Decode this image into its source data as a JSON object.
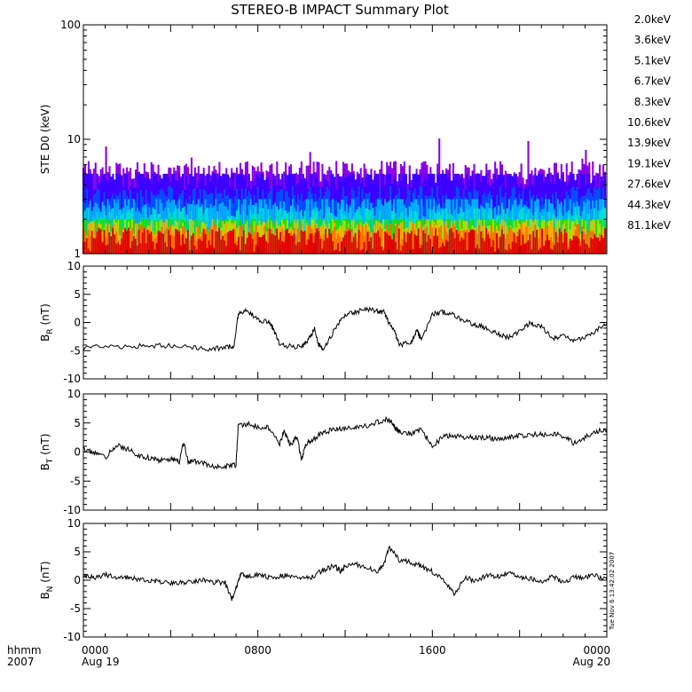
{
  "title": "STEREO-B IMPACT Summary Plot",
  "timestamp": "Tue Nov  6 13:42:02 2007",
  "x_axis": {
    "ticks": [
      {
        "t": 0,
        "top": "0000",
        "bottom": "Aug 19"
      },
      {
        "t": 8,
        "top": "0800",
        "bottom": ""
      },
      {
        "t": 16,
        "top": "1600",
        "bottom": ""
      },
      {
        "t": 24,
        "top": "0000",
        "bottom": "Aug 20"
      }
    ],
    "corner_top": "hhmm",
    "corner_bottom": "2007",
    "range_hours": [
      0,
      24
    ]
  },
  "colors": {
    "2.0keV": "#8a00e6",
    "3.6keV": "#3a00ff",
    "5.1keV": "#0050ff",
    "6.7keV": "#00b4ff",
    "8.3keV": "#00e0d0",
    "10.6keV": "#00e070",
    "13.9keV": "#20e000",
    "19.1keV": "#b0e000",
    "27.6keV": "#ffb000",
    "44.3keV": "#ff7000",
    "81.1keV": "#e00000"
  },
  "chart_data": [
    {
      "type": "bar",
      "name": "STE D0 spectrogram",
      "ylabel": "STE D0 (keV)",
      "yscale": "log",
      "ylim": [
        1,
        100
      ],
      "yticks": [
        "1",
        "10",
        "100"
      ],
      "legend": [
        "2.0keV",
        "3.6keV",
        "5.1keV",
        "6.7keV",
        "8.3keV",
        "10.6keV",
        "13.9keV",
        "19.1keV",
        "27.6keV",
        "44.3keV",
        "81.1keV"
      ],
      "legend_placement": "right",
      "series": [
        {
          "name": "2.0keV",
          "typical": 5,
          "max": 11
        },
        {
          "name": "3.6keV",
          "typical": 4.5,
          "max": 5
        },
        {
          "name": "5.1keV",
          "typical": 3,
          "max": 4
        },
        {
          "name": "6.7keV",
          "typical": 2.5,
          "max": 3
        },
        {
          "name": "8.3keV",
          "typical": 2,
          "max": 3
        },
        {
          "name": "10.6keV",
          "typical": 1.8,
          "max": 2
        },
        {
          "name": "13.9keV",
          "typical": 1.8,
          "max": 2
        },
        {
          "name": "19.1keV",
          "typical": 1.6,
          "max": 2
        },
        {
          "name": "27.6keV",
          "typical": 1.5,
          "max": 2
        },
        {
          "name": "44.3keV",
          "typical": 1.4,
          "max": 2
        },
        {
          "name": "81.1keV",
          "typical": 1.3,
          "max": 2
        }
      ]
    },
    {
      "type": "line",
      "ylabel_main": "B",
      "ylabel_sub": "R",
      "ylabel_unit": "(nT)",
      "ylim": [
        -10,
        10
      ],
      "yticks": [
        "10",
        "5",
        "0",
        "-5",
        "-10"
      ],
      "x": [
        0,
        1,
        2,
        3,
        4,
        5,
        5.8,
        6.5,
        6.9,
        7.1,
        7.5,
        8,
        8.5,
        8.7,
        9,
        9.5,
        10,
        10.3,
        10.6,
        10.8,
        11,
        11.5,
        12,
        12.5,
        13,
        13.5,
        13.8,
        14,
        14.3,
        14.5,
        15,
        15.3,
        15.5,
        16,
        16.5,
        17,
        17.5,
        18,
        18.5,
        19,
        19.5,
        20,
        20.5,
        21,
        21.5,
        22,
        22.5,
        23,
        23.5,
        24
      ],
      "y": [
        -4.5,
        -4.3,
        -4.3,
        -4.1,
        -4.2,
        -4.4,
        -4.8,
        -4.4,
        -4.2,
        1.5,
        2.3,
        0.5,
        0,
        -1,
        -4,
        -4.2,
        -4.4,
        -3.2,
        -1.2,
        -4,
        -4.7,
        -1.4,
        1.5,
        1.9,
        2.3,
        2,
        1.8,
        0,
        -2,
        -4,
        -3.5,
        -1.5,
        -3,
        1.5,
        1.8,
        1.4,
        0.2,
        -0.4,
        -1,
        -2,
        -2.7,
        -1.5,
        -0.1,
        -0.7,
        -2.8,
        -2.5,
        -3.2,
        -2.8,
        -1.5,
        0
      ]
    },
    {
      "type": "line",
      "ylabel_main": "B",
      "ylabel_sub": "T",
      "ylabel_unit": "(nT)",
      "ylim": [
        -10,
        10
      ],
      "yticks": [
        "10",
        "5",
        "0",
        "-5",
        "-10"
      ],
      "x": [
        0,
        0.5,
        1,
        1.5,
        2,
        2.5,
        3,
        3.5,
        4,
        4.4,
        4.6,
        4.8,
        5,
        5.5,
        6,
        6.5,
        7,
        7.1,
        7.5,
        8,
        8.5,
        9,
        9.2,
        9.5,
        9.8,
        10,
        10.2,
        10.5,
        11,
        11.5,
        12,
        12.5,
        13,
        13.5,
        14,
        14.3,
        14.5,
        15,
        15.5,
        16,
        16.5,
        17,
        17.5,
        18,
        18.5,
        19,
        19.5,
        20,
        20.5,
        21,
        21.5,
        22,
        22.5,
        23,
        23.5,
        24
      ],
      "y": [
        0.5,
        -0.2,
        -1,
        1.2,
        0.5,
        -0.5,
        -1,
        -1.5,
        -1.2,
        -1.8,
        1.8,
        -1.8,
        -1.5,
        -2,
        -2.5,
        -2.5,
        -2.2,
        4.5,
        4.8,
        4.4,
        4.2,
        1.5,
        3.5,
        1.2,
        2.8,
        -1.6,
        1.5,
        2,
        3.5,
        3.8,
        4,
        4.2,
        4.5,
        5.2,
        5.6,
        4.1,
        3.5,
        3.2,
        3.8,
        1,
        2.6,
        2.8,
        2.5,
        2.5,
        2.5,
        2.2,
        2.6,
        2.8,
        3,
        3,
        3.2,
        2.8,
        1.5,
        2.5,
        3.5,
        3.9
      ]
    },
    {
      "type": "line",
      "ylabel_main": "B",
      "ylabel_sub": "N",
      "ylabel_unit": "(nT)",
      "ylim": [
        -10,
        10
      ],
      "yticks": [
        "10",
        "5",
        "0",
        "-5",
        "-10"
      ],
      "x": [
        0,
        0.5,
        1,
        1.5,
        2,
        2.5,
        3,
        3.5,
        4,
        4.5,
        5,
        5.5,
        6,
        6.5,
        6.8,
        7,
        7.2,
        7.5,
        8,
        8.5,
        9,
        9.5,
        10,
        10.5,
        11,
        11.5,
        11.8,
        12,
        12.5,
        13,
        13.5,
        13.8,
        14,
        14.5,
        15,
        15.5,
        16,
        16.5,
        17,
        17.5,
        18,
        18.5,
        19,
        19.5,
        20,
        20.5,
        21,
        21.5,
        22,
        22.5,
        23,
        23.5,
        24
      ],
      "y": [
        0.8,
        0.4,
        1,
        0.6,
        0.5,
        0.2,
        0,
        -0.2,
        -0.5,
        -0.4,
        -0.2,
        0.1,
        -0.3,
        -0.5,
        -3.2,
        -1.5,
        1.2,
        0.5,
        1,
        0.5,
        0.7,
        0.8,
        0.3,
        0.6,
        1.8,
        2.6,
        1.5,
        2.5,
        2.8,
        2.2,
        1.6,
        3,
        5.8,
        3.5,
        3.2,
        2.5,
        1.5,
        0,
        -2.5,
        0.5,
        -0.2,
        1,
        0.7,
        1.2,
        0.5,
        0.3,
        -0.2,
        0.7,
        -0.3,
        0.5,
        0.6,
        0.8,
        0
      ]
    }
  ]
}
